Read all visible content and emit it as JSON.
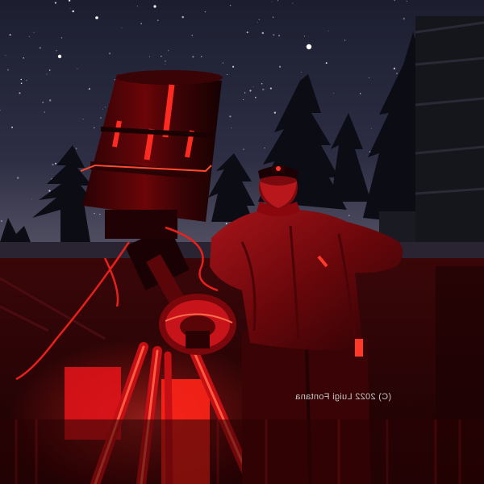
{
  "photo": {
    "credit": "(C) 2022 Luigi Fontana"
  },
  "colors": {
    "sky_top": "#1b1d33",
    "sky_horizon": "#57576a",
    "red_light": "#e8141a",
    "deep_red": "#3a0406",
    "tree_silhouette": "#0c0c14"
  },
  "icons": [
    "star",
    "conifer-tree",
    "telescope",
    "tripod",
    "headlamp"
  ]
}
